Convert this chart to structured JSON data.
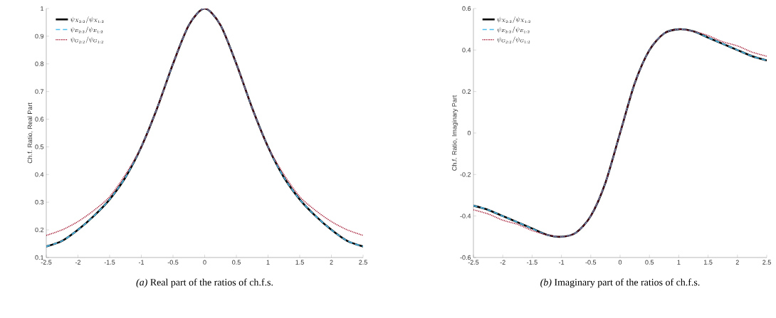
{
  "chart_data": [
    {
      "type": "line",
      "title": "*(a)* Real part of the ratios of ch.f.s.",
      "ylabel": "Ch.f. Ratio, Real Part",
      "x": [
        -2.5,
        -2.25,
        -2,
        -1.75,
        -1.5,
        -1.25,
        -1,
        -0.75,
        -0.5,
        -0.25,
        0,
        0.25,
        0.5,
        0.75,
        1,
        1.25,
        1.5,
        1.75,
        2,
        2.25,
        2.5
      ],
      "series": [
        {
          "name": "\\psi_{X_{2:2}}/\\psi_{X_{1:2}}",
          "color": "#000000",
          "line_style": "solid",
          "values": [
            0.14,
            0.16,
            0.2,
            0.25,
            0.31,
            0.39,
            0.5,
            0.64,
            0.8,
            0.94,
            1,
            0.94,
            0.8,
            0.64,
            0.5,
            0.39,
            0.31,
            0.25,
            0.2,
            0.16,
            0.14
          ]
        },
        {
          "name": "\\psi_{E_{2:2}}/\\psi_{E_{1:2}}",
          "color": "#4dbeee",
          "line_style": "dashed",
          "values": [
            0.14,
            0.16,
            0.2,
            0.25,
            0.31,
            0.39,
            0.5,
            0.64,
            0.8,
            0.94,
            1,
            0.94,
            0.8,
            0.64,
            0.5,
            0.39,
            0.31,
            0.25,
            0.2,
            0.16,
            0.14
          ]
        },
        {
          "name": "\\psi_{G_{2:2}}/\\psi_{G_{1:2}}",
          "color": "#a2142f",
          "line_style": "dotted",
          "values": [
            0.18,
            0.2,
            0.23,
            0.27,
            0.32,
            0.4,
            0.5,
            0.64,
            0.8,
            0.94,
            1,
            0.94,
            0.8,
            0.64,
            0.5,
            0.4,
            0.32,
            0.27,
            0.23,
            0.2,
            0.18
          ]
        }
      ],
      "xlim": [
        -2.5,
        2.5
      ],
      "ylim": [
        0.1,
        1
      ],
      "xticks": [
        -2.5,
        -2,
        -1.5,
        -1,
        -0.5,
        0,
        0.5,
        1,
        1.5,
        2,
        2.5
      ],
      "yticks": [
        0.1,
        0.2,
        0.3,
        0.4,
        0.5,
        0.6,
        0.7,
        0.8,
        0.9,
        1
      ],
      "grid": false,
      "legend": "top left"
    },
    {
      "type": "line",
      "title": "*(b)* Imaginary part of the ratios of ch.f.s.",
      "ylabel": "Ch.f. Ratio, Imaginary Part",
      "x": [
        -2.5,
        -2.25,
        -2,
        -1.75,
        -1.5,
        -1.25,
        -1,
        -0.75,
        -0.5,
        -0.25,
        0,
        0.25,
        0.5,
        0.75,
        1,
        1.25,
        1.5,
        1.75,
        2,
        2.25,
        2.5
      ],
      "series": [
        {
          "name": "\\psi_{X_{2:2}}/\\psi_{X_{1:2}}",
          "color": "#000000",
          "line_style": "solid",
          "values": [
            -0.35,
            -0.37,
            -0.4,
            -0.43,
            -0.46,
            -0.49,
            -0.5,
            -0.48,
            -0.4,
            -0.24,
            0,
            0.24,
            0.4,
            0.48,
            0.5,
            0.49,
            0.46,
            0.43,
            0.4,
            0.37,
            0.35
          ]
        },
        {
          "name": "\\psi_{E_{2:2}}/\\psi_{E_{1:2}}",
          "color": "#4dbeee",
          "line_style": "dashed",
          "values": [
            -0.35,
            -0.37,
            -0.4,
            -0.43,
            -0.46,
            -0.49,
            -0.5,
            -0.48,
            -0.4,
            -0.24,
            0,
            0.24,
            0.4,
            0.48,
            0.5,
            0.49,
            0.46,
            0.43,
            0.4,
            0.37,
            0.35
          ]
        },
        {
          "name": "\\psi_{G_{2:2}}/\\psi_{G_{1:2}}",
          "color": "#a2142f",
          "line_style": "dotted",
          "values": [
            -0.37,
            -0.39,
            -0.42,
            -0.44,
            -0.47,
            -0.49,
            -0.5,
            -0.48,
            -0.4,
            -0.24,
            0,
            0.24,
            0.4,
            0.48,
            0.5,
            0.49,
            0.47,
            0.44,
            0.42,
            0.39,
            0.37
          ]
        }
      ],
      "xlim": [
        -2.5,
        2.5
      ],
      "ylim": [
        -0.6,
        0.6
      ],
      "xticks": [
        -2.5,
        -2,
        -1.5,
        -1,
        -0.5,
        0,
        0.5,
        1,
        1.5,
        2,
        2.5
      ],
      "yticks": [
        -0.6,
        -0.4,
        -0.2,
        0,
        0.2,
        0.4,
        0.6
      ],
      "grid": false,
      "legend": "top left"
    }
  ]
}
